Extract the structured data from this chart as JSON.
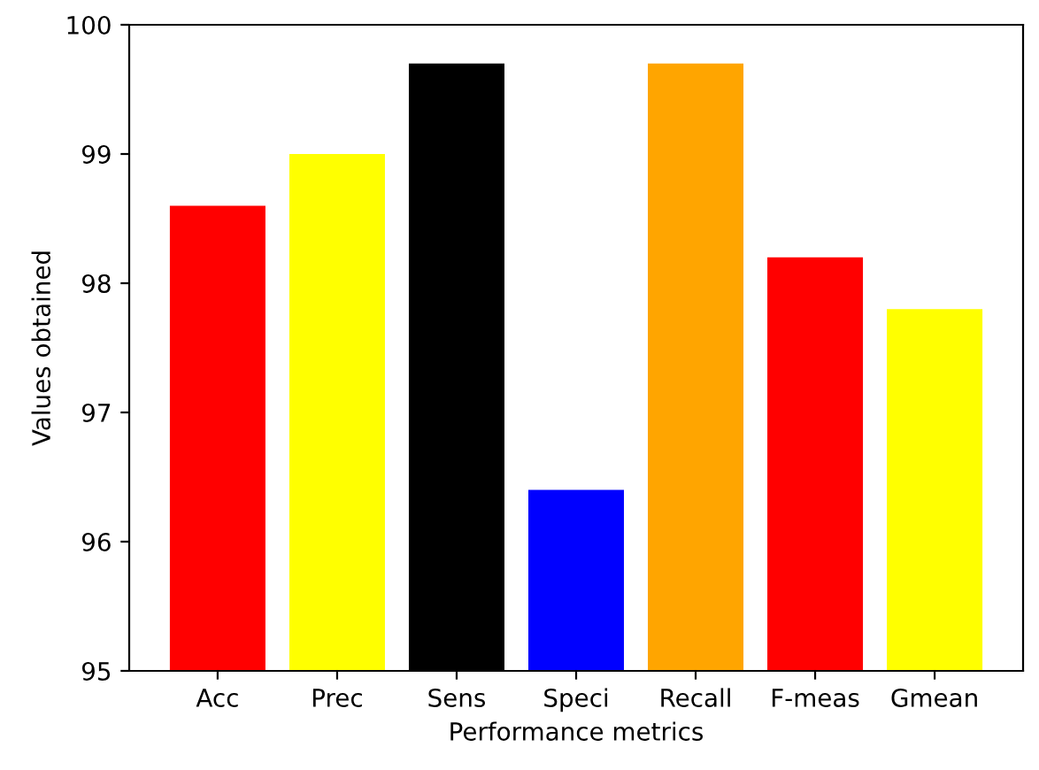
{
  "chart_data": {
    "type": "bar",
    "xlabel": "Performance metrics",
    "ylabel": "Values obtained",
    "categories": [
      "Acc",
      "Prec",
      "Sens",
      "Speci",
      "Recall",
      "F-meas",
      "Gmean"
    ],
    "values": [
      98.6,
      99.0,
      99.7,
      96.4,
      99.7,
      98.2,
      97.8
    ],
    "colors": [
      "#ff0000",
      "#ffff00",
      "#000000",
      "#0000ff",
      "#ffa500",
      "#ff0000",
      "#ffff00"
    ],
    "ylim": [
      95,
      100
    ],
    "yticks": [
      95,
      96,
      97,
      98,
      99,
      100
    ],
    "grid": false
  }
}
